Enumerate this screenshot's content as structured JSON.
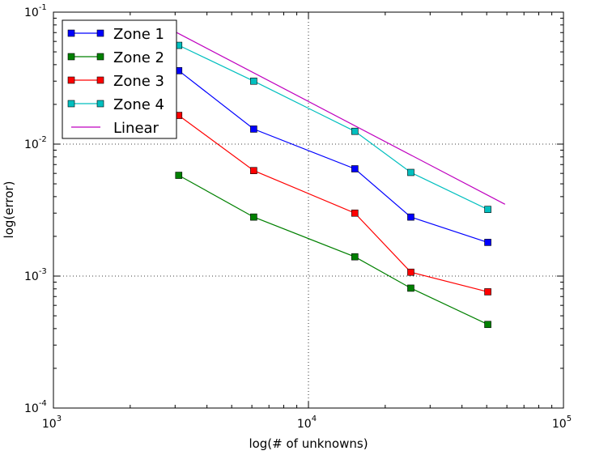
{
  "chart_data": {
    "type": "line",
    "title": "",
    "xlabel": "log(# of unknowns)",
    "ylabel": "log(error)",
    "xscale": "log",
    "yscale": "log",
    "xlim": [
      1000,
      100000
    ],
    "ylim": [
      0.0001,
      0.1
    ],
    "grid": true,
    "legend_position": "top-left",
    "x_ticks": [
      {
        "base": "10",
        "exp": "3",
        "value": 1000
      },
      {
        "base": "10",
        "exp": "4",
        "value": 10000
      },
      {
        "base": "10",
        "exp": "5",
        "value": 100000
      }
    ],
    "y_ticks": [
      {
        "base": "10",
        "exp": "-1",
        "value": 0.1
      },
      {
        "base": "10",
        "exp": "-2",
        "value": 0.01
      },
      {
        "base": "10",
        "exp": "-3",
        "value": 0.001
      },
      {
        "base": "10",
        "exp": "-4",
        "value": 0.0001
      }
    ],
    "series": [
      {
        "name": "Zone 1",
        "color": "#0000ff",
        "marker": "square",
        "x": [
          3100,
          6100,
          15200,
          25200,
          50500
        ],
        "y": [
          0.036,
          0.013,
          0.0065,
          0.0028,
          0.0018
        ]
      },
      {
        "name": "Zone 2",
        "color": "#008000",
        "marker": "square",
        "x": [
          3100,
          6100,
          15200,
          25200,
          50500
        ],
        "y": [
          0.0058,
          0.0028,
          0.0014,
          0.00081,
          0.00043
        ]
      },
      {
        "name": "Zone 3",
        "color": "#ff0000",
        "marker": "square",
        "x": [
          3100,
          6100,
          15200,
          25200,
          50500
        ],
        "y": [
          0.0165,
          0.0063,
          0.003,
          0.00107,
          0.00076
        ]
      },
      {
        "name": "Zone 4",
        "color": "#00bfbf",
        "marker": "square",
        "x": [
          3100,
          6100,
          15200,
          25200,
          50500
        ],
        "y": [
          0.056,
          0.03,
          0.0125,
          0.0061,
          0.0032
        ]
      },
      {
        "name": "Linear",
        "color": "#bf00bf",
        "marker": "none",
        "x": [
          3000,
          59000
        ],
        "y": [
          0.071,
          0.0035
        ]
      }
    ]
  }
}
